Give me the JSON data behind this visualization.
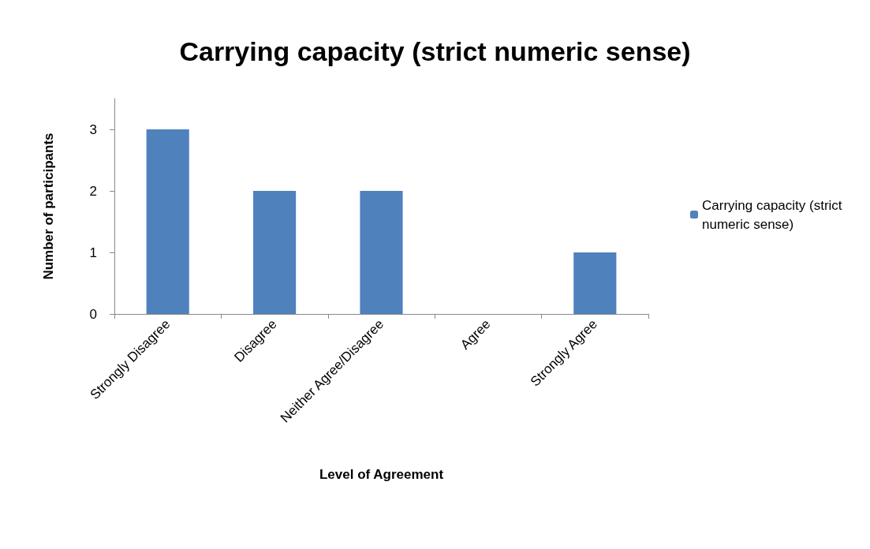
{
  "chart_data": {
    "type": "bar",
    "title": "Carrying capacity (strict numeric sense)",
    "xlabel": "Level of Agreement",
    "ylabel": "Number of participants",
    "categories": [
      "Strongly Disagree",
      "Disagree",
      "Neither Agree/Disagree",
      "Agree",
      "Strongly Agree"
    ],
    "series": [
      {
        "name": "Carrying capacity (strict numeric sense)",
        "color": "#4f81bd",
        "values": [
          3,
          2,
          2,
          0,
          1
        ]
      }
    ],
    "ylim": [
      0,
      3.5
    ],
    "yticks": [
      0,
      1,
      2,
      3
    ],
    "grid": false,
    "legend": "right"
  }
}
